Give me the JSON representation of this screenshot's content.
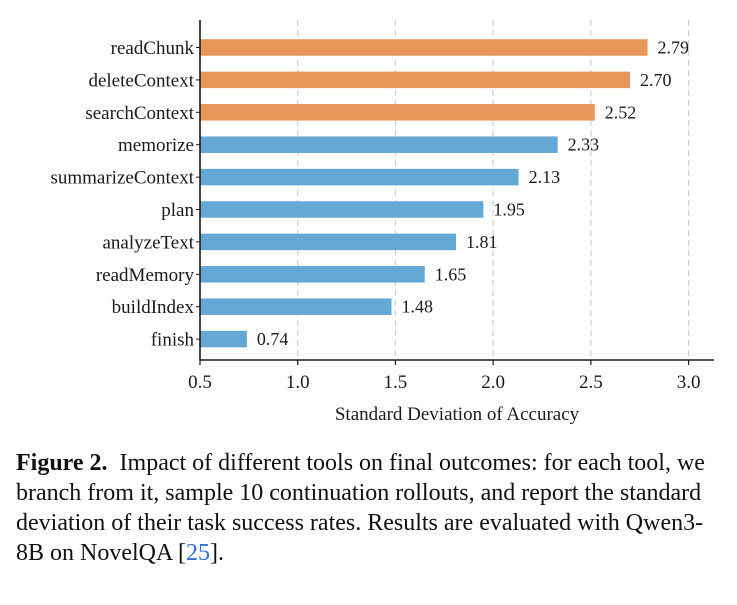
{
  "chart_data": {
    "type": "bar",
    "orientation": "horizontal",
    "categories": [
      "readChunk",
      "deleteContext",
      "searchContext",
      "memorize",
      "summarizeContext",
      "plan",
      "analyzeText",
      "readMemory",
      "buildIndex",
      "finish"
    ],
    "values": [
      2.79,
      2.7,
      2.52,
      2.33,
      2.13,
      1.95,
      1.81,
      1.65,
      1.48,
      0.74
    ],
    "value_labels": [
      "2.79",
      "2.70",
      "2.52",
      "2.33",
      "2.13",
      "1.95",
      "1.81",
      "1.65",
      "1.48",
      "0.74"
    ],
    "bar_colors": [
      "#e8975a",
      "#e8975a",
      "#e8975a",
      "#65a8d6",
      "#65a8d6",
      "#65a8d6",
      "#65a8d6",
      "#65a8d6",
      "#65a8d6",
      "#65a8d6"
    ],
    "xlabel": "Standard Deviation of Accuracy",
    "ylabel": "",
    "xlim": [
      0.5,
      3.13
    ],
    "xticks": [
      0.5,
      1.0,
      1.5,
      2.0,
      2.5,
      3.0
    ],
    "xtick_labels": [
      "0.5",
      "1.0",
      "1.5",
      "2.0",
      "2.5",
      "3.0"
    ],
    "grid": "vertical dashed"
  },
  "caption": {
    "label": "Figure 2.",
    "text_before_ref": "Impact of different tools on final outcomes: for each tool, we branch from it, sample 10 continuation rollouts, and report the standard deviation of their task success rates. Results are evaluated with Qwen3-8B on NovelQA [",
    "ref": "25",
    "text_after_ref": "]."
  }
}
